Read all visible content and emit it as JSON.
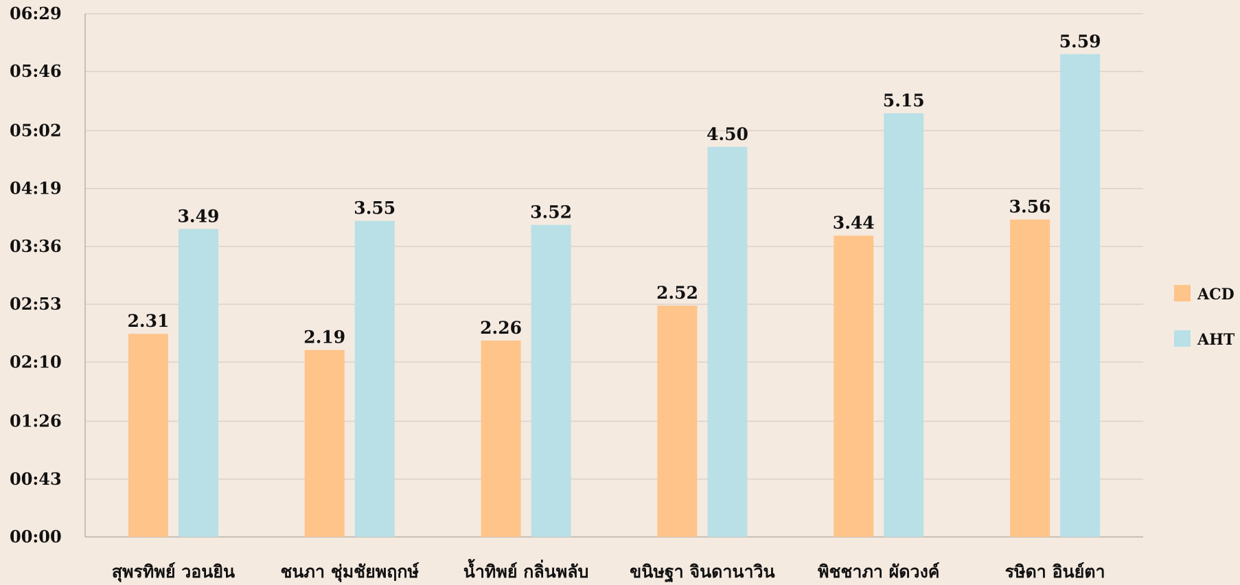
{
  "chart_data": {
    "type": "bar",
    "title": "",
    "xlabel": "",
    "ylabel": "",
    "categories": [
      "สุพรทิพย์ วอนยิน",
      "ชนภา ชุ่มชัยพฤกษ์",
      "น้ำทิพย์ กลิ่นพลับ",
      "ขนิษฐา จินดานาวิน",
      "พิชชาภา ผัดวงค์",
      "รษิดา อินย์ตา"
    ],
    "series": [
      {
        "name": "ACD",
        "color": "#fec48a",
        "values": [
          151,
          139,
          146,
          172,
          224,
          236
        ],
        "labels": [
          "2.31",
          "2.19",
          "2.26",
          "2.52",
          "3.44",
          "3.56"
        ]
      },
      {
        "name": "AHT",
        "color": "#b8e0e6",
        "values": [
          229,
          235,
          232,
          290,
          315,
          359
        ],
        "labels": [
          "3.49",
          "3.55",
          "3.52",
          "4.50",
          "5.15",
          "5.59"
        ]
      }
    ],
    "y_ticks": [
      {
        "value": 0,
        "label": "00:00"
      },
      {
        "value": 43,
        "label": "00:43"
      },
      {
        "value": 86,
        "label": "01:26"
      },
      {
        "value": 130,
        "label": "02:10"
      },
      {
        "value": 173,
        "label": "02:53"
      },
      {
        "value": 216,
        "label": "03:36"
      },
      {
        "value": 259,
        "label": "04:19"
      },
      {
        "value": 302,
        "label": "05:02"
      },
      {
        "value": 346,
        "label": "05:46"
      },
      {
        "value": 389,
        "label": "06:29"
      }
    ],
    "ylim": [
      0,
      389
    ],
    "y_unit": "seconds",
    "grid": true,
    "legend_position": "right"
  }
}
